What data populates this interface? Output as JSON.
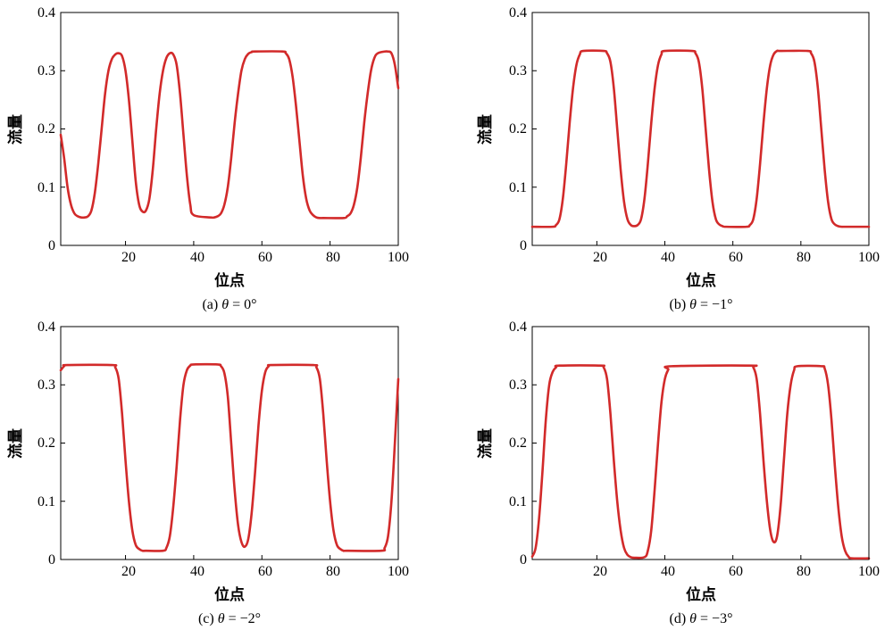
{
  "chart_data": [
    {
      "type": "line",
      "caption_prefix": "(a) ",
      "caption_symbol": "θ",
      "caption_suffix": " = 0°",
      "xlabel": "位点",
      "ylabel": "流量",
      "xlim": [
        1,
        100
      ],
      "ylim": [
        0,
        0.4
      ],
      "xticks": [
        20,
        40,
        60,
        80,
        100
      ],
      "yticks": [
        0,
        0.1,
        0.2,
        0.3,
        0.4
      ],
      "ytick_labels": [
        "0",
        "0.1",
        "0.2",
        "0.3",
        "0.4"
      ],
      "grid": false,
      "series": [
        {
          "color": "#d22a2a",
          "x": [
            1,
            2,
            3,
            4,
            5,
            6,
            7,
            8,
            9,
            10,
            11,
            12,
            13,
            14,
            15,
            16,
            17,
            18,
            19,
            20,
            21,
            22,
            23,
            24,
            25,
            26,
            27,
            28,
            29,
            30,
            31,
            32,
            33,
            34,
            35,
            36,
            37,
            38,
            39,
            40,
            45,
            46,
            47,
            48,
            49,
            50,
            51,
            52,
            53,
            54,
            55,
            56,
            57,
            58,
            66,
            67,
            68,
            69,
            70,
            71,
            72,
            73,
            74,
            75,
            76,
            77,
            78,
            84,
            85,
            86,
            87,
            88,
            89,
            90,
            91,
            92,
            93,
            94,
            96,
            97,
            98,
            99,
            100
          ],
          "y": [
            0.19,
            0.15,
            0.1,
            0.07,
            0.055,
            0.05,
            0.048,
            0.048,
            0.05,
            0.06,
            0.09,
            0.14,
            0.2,
            0.26,
            0.3,
            0.32,
            0.328,
            0.33,
            0.325,
            0.3,
            0.25,
            0.18,
            0.11,
            0.07,
            0.058,
            0.06,
            0.08,
            0.13,
            0.2,
            0.26,
            0.3,
            0.322,
            0.33,
            0.328,
            0.31,
            0.26,
            0.19,
            0.12,
            0.07,
            0.052,
            0.048,
            0.048,
            0.05,
            0.055,
            0.07,
            0.1,
            0.15,
            0.21,
            0.26,
            0.3,
            0.32,
            0.329,
            0.332,
            0.333,
            0.333,
            0.33,
            0.32,
            0.29,
            0.24,
            0.18,
            0.12,
            0.08,
            0.06,
            0.052,
            0.048,
            0.047,
            0.047,
            0.047,
            0.05,
            0.055,
            0.07,
            0.1,
            0.15,
            0.21,
            0.26,
            0.3,
            0.322,
            0.33,
            0.333,
            0.333,
            0.33,
            0.31,
            0.27
          ]
        }
      ]
    },
    {
      "type": "line",
      "caption_prefix": "(b) ",
      "caption_symbol": "θ",
      "caption_suffix": " = −1°",
      "xlabel": "位点",
      "ylabel": "流量",
      "xlim": [
        1,
        100
      ],
      "ylim": [
        0,
        0.4
      ],
      "xticks": [
        20,
        40,
        60,
        80,
        100
      ],
      "yticks": [
        0,
        0.1,
        0.2,
        0.3,
        0.4
      ],
      "ytick_labels": [
        "0",
        "0.1",
        "0.2",
        "0.3",
        "0.4"
      ],
      "grid": false,
      "series": [
        {
          "color": "#d22a2a",
          "x": [
            1,
            7,
            8,
            9,
            10,
            11,
            12,
            13,
            14,
            15,
            16,
            22,
            23,
            24,
            25,
            26,
            27,
            28,
            29,
            30,
            31,
            32,
            33,
            34,
            35,
            36,
            37,
            38,
            39,
            40,
            48,
            49,
            50,
            51,
            52,
            53,
            54,
            55,
            56,
            57,
            58,
            64,
            65,
            66,
            67,
            68,
            69,
            70,
            71,
            72,
            73,
            74,
            82,
            83,
            84,
            85,
            86,
            87,
            88,
            89,
            90,
            91,
            92,
            93,
            100
          ],
          "y": [
            0.032,
            0.032,
            0.035,
            0.045,
            0.08,
            0.14,
            0.21,
            0.27,
            0.31,
            0.328,
            0.334,
            0.334,
            0.33,
            0.315,
            0.27,
            0.2,
            0.13,
            0.075,
            0.045,
            0.035,
            0.033,
            0.035,
            0.045,
            0.08,
            0.14,
            0.21,
            0.27,
            0.31,
            0.328,
            0.334,
            0.334,
            0.33,
            0.315,
            0.27,
            0.2,
            0.13,
            0.075,
            0.045,
            0.036,
            0.033,
            0.032,
            0.032,
            0.035,
            0.045,
            0.08,
            0.14,
            0.21,
            0.27,
            0.31,
            0.328,
            0.334,
            0.334,
            0.334,
            0.33,
            0.315,
            0.27,
            0.2,
            0.13,
            0.075,
            0.045,
            0.036,
            0.033,
            0.032,
            0.032,
            0.032
          ]
        }
      ]
    },
    {
      "type": "line",
      "caption_prefix": "(c) ",
      "caption_symbol": "θ",
      "caption_suffix": " = −2°",
      "xlabel": "位点",
      "ylabel": "流量",
      "xlim": [
        1,
        100
      ],
      "ylim": [
        0,
        0.4
      ],
      "xticks": [
        20,
        40,
        60,
        80,
        100
      ],
      "yticks": [
        0,
        0.1,
        0.2,
        0.3,
        0.4
      ],
      "ytick_labels": [
        "0",
        "0.1",
        "0.2",
        "0.3",
        "0.4"
      ],
      "grid": false,
      "series": [
        {
          "color": "#d22a2a",
          "x": [
            1,
            2,
            3,
            16,
            17,
            18,
            19,
            20,
            21,
            22,
            23,
            24,
            25,
            26,
            31,
            32,
            33,
            34,
            35,
            36,
            37,
            38,
            39,
            40,
            47,
            48,
            49,
            50,
            51,
            52,
            53,
            54,
            55,
            56,
            57,
            58,
            59,
            60,
            61,
            62,
            63,
            75,
            76,
            77,
            78,
            79,
            80,
            81,
            82,
            83,
            84,
            85,
            95,
            96,
            97,
            98,
            99,
            100
          ],
          "y": [
            0.325,
            0.332,
            0.334,
            0.334,
            0.33,
            0.31,
            0.25,
            0.17,
            0.1,
            0.05,
            0.025,
            0.018,
            0.015,
            0.015,
            0.015,
            0.02,
            0.04,
            0.09,
            0.16,
            0.24,
            0.3,
            0.325,
            0.333,
            0.335,
            0.335,
            0.332,
            0.32,
            0.28,
            0.2,
            0.12,
            0.06,
            0.03,
            0.022,
            0.035,
            0.08,
            0.15,
            0.23,
            0.29,
            0.322,
            0.332,
            0.334,
            0.334,
            0.33,
            0.31,
            0.25,
            0.17,
            0.1,
            0.05,
            0.025,
            0.018,
            0.015,
            0.015,
            0.015,
            0.02,
            0.04,
            0.1,
            0.2,
            0.31
          ]
        }
      ]
    },
    {
      "type": "line",
      "caption_prefix": "(d) ",
      "caption_symbol": "θ",
      "caption_suffix": " = −3°",
      "xlabel": "位点",
      "ylabel": "流量",
      "xlim": [
        1,
        100
      ],
      "ylim": [
        0,
        0.4
      ],
      "xticks": [
        20,
        40,
        60,
        80,
        100
      ],
      "yticks": [
        0,
        0.1,
        0.2,
        0.3,
        0.4
      ],
      "ytick_labels": [
        "0",
        "0.1",
        "0.2",
        "0.3",
        "0.4"
      ],
      "grid": false,
      "series": [
        {
          "color": "#d22a2a",
          "x": [
            1,
            2,
            3,
            4,
            5,
            6,
            7,
            8,
            9,
            21,
            22,
            23,
            24,
            25,
            26,
            27,
            28,
            29,
            30,
            31,
            34,
            35,
            36,
            37,
            38,
            39,
            40,
            41,
            42,
            65,
            66,
            67,
            68,
            69,
            70,
            71,
            72,
            73,
            74,
            75,
            76,
            77,
            78,
            79,
            86,
            87,
            88,
            89,
            90,
            91,
            92,
            93,
            94,
            95,
            100
          ],
          "y": [
            0.005,
            0.02,
            0.07,
            0.15,
            0.24,
            0.3,
            0.322,
            0.33,
            0.333,
            0.333,
            0.33,
            0.31,
            0.25,
            0.17,
            0.1,
            0.05,
            0.02,
            0.008,
            0.004,
            0.003,
            0.004,
            0.015,
            0.05,
            0.12,
            0.2,
            0.27,
            0.31,
            0.326,
            0.332,
            0.333,
            0.33,
            0.31,
            0.25,
            0.17,
            0.1,
            0.05,
            0.03,
            0.04,
            0.09,
            0.17,
            0.25,
            0.3,
            0.325,
            0.332,
            0.332,
            0.328,
            0.3,
            0.24,
            0.16,
            0.09,
            0.04,
            0.015,
            0.005,
            0.002,
            0.002
          ]
        }
      ]
    }
  ]
}
